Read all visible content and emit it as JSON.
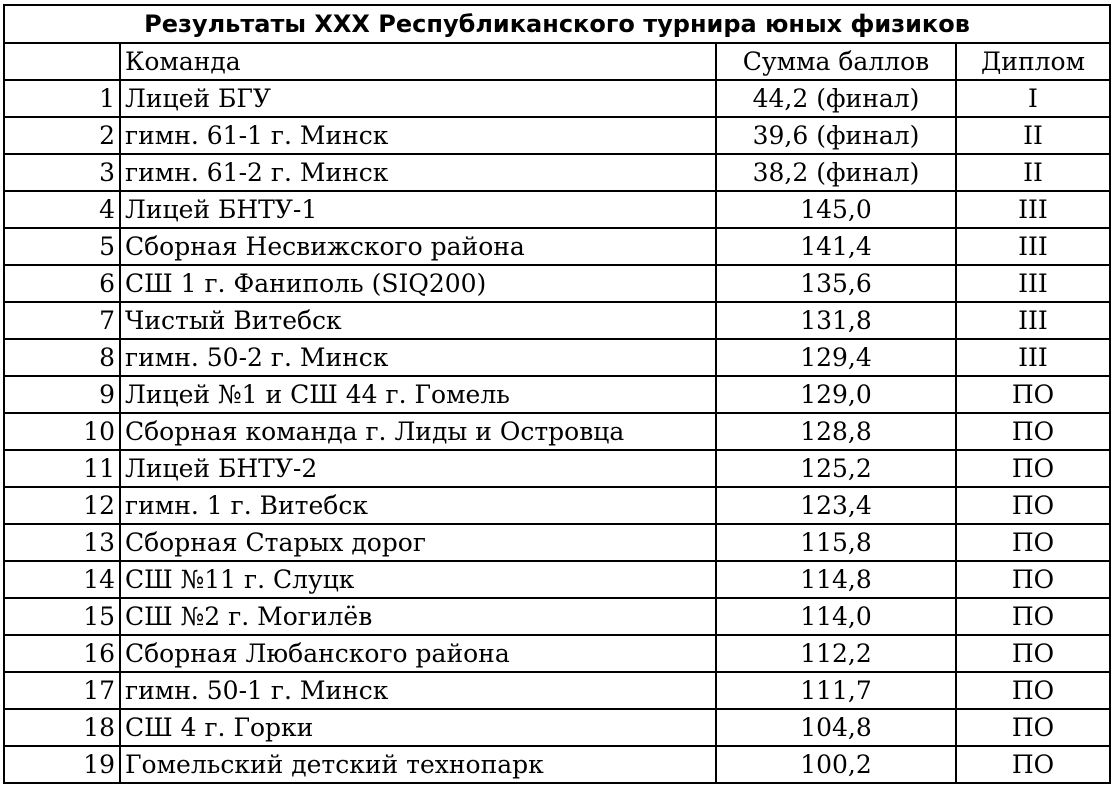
{
  "title": "Результаты XXX Республиканского турнира юных физиков",
  "header": {
    "num": "",
    "team": "Команда",
    "score": "Сумма баллов",
    "diploma": "Диплом"
  },
  "rows": [
    {
      "num": "1",
      "team": "Лицей БГУ",
      "score": "44,2 (финал)",
      "diploma": "I"
    },
    {
      "num": "2",
      "team": "гимн. 61-1 г. Минск",
      "score": "39,6 (финал)",
      "diploma": "II"
    },
    {
      "num": "3",
      "team": "гимн. 61-2 г. Минск",
      "score": "38,2 (финал)",
      "diploma": "II"
    },
    {
      "num": "4",
      "team": "Лицей БНТУ-1",
      "score": "145,0",
      "diploma": "III"
    },
    {
      "num": "5",
      "team": "Сборная Несвижского района",
      "score": "141,4",
      "diploma": "III"
    },
    {
      "num": "6",
      "team": "СШ 1 г. Фаниполь (SIQ200)",
      "score": "135,6",
      "diploma": "III"
    },
    {
      "num": "7",
      "team": "Чистый Витебск",
      "score": "131,8",
      "diploma": "III"
    },
    {
      "num": "8",
      "team": "гимн. 50-2 г. Минск",
      "score": "129,4",
      "diploma": "III"
    },
    {
      "num": "9",
      "team": "Лицей №1 и СШ 44 г. Гомель",
      "score": "129,0",
      "diploma": "ПО"
    },
    {
      "num": "10",
      "team": "Сборная команда г. Лиды и Островца",
      "score": "128,8",
      "diploma": "ПО"
    },
    {
      "num": "11",
      "team": "Лицей БНТУ-2",
      "score": "125,2",
      "diploma": "ПО"
    },
    {
      "num": "12",
      "team": "гимн. 1 г. Витебск",
      "score": "123,4",
      "diploma": "ПО"
    },
    {
      "num": "13",
      "team": "Сборная Старых дорог",
      "score": "115,8",
      "diploma": "ПО"
    },
    {
      "num": "14",
      "team": "СШ №11 г. Слуцк",
      "score": "114,8",
      "diploma": "ПО"
    },
    {
      "num": "15",
      "team": "СШ №2 г. Могилёв",
      "score": "114,0",
      "diploma": "ПО"
    },
    {
      "num": "16",
      "team": "Сборная Любанского района",
      "score": "112,2",
      "diploma": "ПО"
    },
    {
      "num": "17",
      "team": "гимн. 50-1 г. Минск",
      "score": "111,7",
      "diploma": "ПО"
    },
    {
      "num": "18",
      "team": "СШ 4 г. Горки",
      "score": "104,8",
      "diploma": "ПО"
    },
    {
      "num": "19",
      "team": "Гомельский детский технопарк",
      "score": "100,2",
      "diploma": "ПО"
    }
  ]
}
